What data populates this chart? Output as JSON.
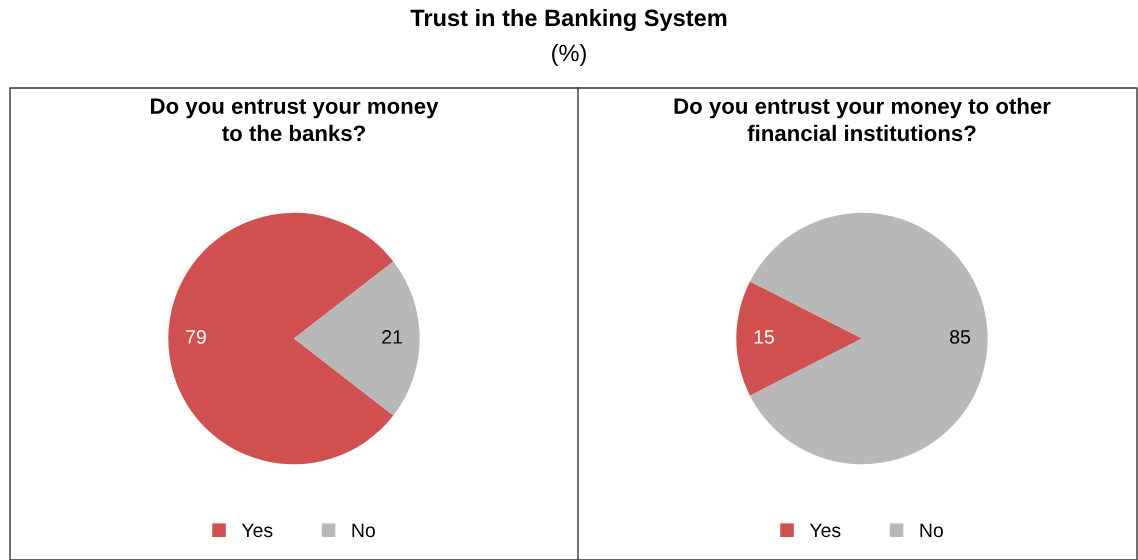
{
  "chart_data": [
    {
      "type": "other",
      "title": "Trust in the Banking System",
      "subtitle": "(%)"
    },
    {
      "type": "pie",
      "title": "Do you entrust your money\nto the banks?",
      "categories": [
        "Yes",
        "No"
      ],
      "values": [
        79,
        21
      ],
      "colors": [
        "#d05050",
        "#b8b8b8"
      ],
      "data_labels": true,
      "legend": "bottom"
    },
    {
      "type": "pie",
      "title": "Do you entrust your money to other\nfinancial institutions?",
      "categories": [
        "Yes",
        "No"
      ],
      "values": [
        15,
        85
      ],
      "colors": [
        "#d05050",
        "#b8b8b8"
      ],
      "data_labels": true,
      "legend": "bottom"
    }
  ]
}
